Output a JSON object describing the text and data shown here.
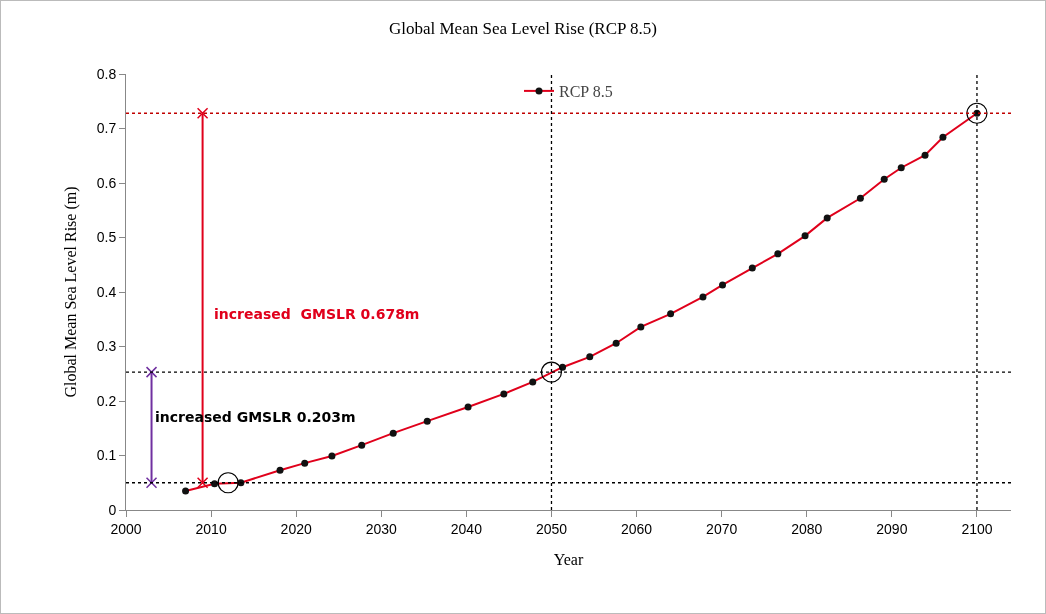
{
  "chart_data": {
    "type": "line",
    "title": "Global Mean Sea Level Rise (RCP 8.5)",
    "xlabel": "Year",
    "ylabel": "Global Mean Sea Level Rise (m)",
    "series": [
      {
        "name": "RCP 8.5",
        "color": "#e0001b",
        "marker": "circle",
        "x": [
          2007.0,
          2010.4,
          2013.5,
          2018.1,
          2021.0,
          2024.2,
          2027.7,
          2031.4,
          2035.4,
          2040.2,
          2044.4,
          2047.8,
          2051.3,
          2054.5,
          2057.6,
          2060.5,
          2064.0,
          2067.8,
          2070.1,
          2073.6,
          2076.6,
          2079.8,
          2082.4,
          2086.3,
          2089.1,
          2091.1,
          2093.9,
          2096.0,
          2100.0
        ],
        "values": [
          0.035,
          0.048,
          0.05,
          0.073,
          0.086,
          0.099,
          0.119,
          0.141,
          0.163,
          0.189,
          0.213,
          0.235,
          0.262,
          0.281,
          0.306,
          0.336,
          0.36,
          0.391,
          0.413,
          0.444,
          0.47,
          0.503,
          0.536,
          0.572,
          0.607,
          0.628,
          0.651,
          0.684,
          0.728
        ]
      },
      {
        "type": "scatter",
        "color": "#000000",
        "marker": "circle",
        "x": [
          2012,
          2050,
          2100
        ],
        "values": [
          0.05,
          0.253,
          0.728
        ]
      },
      {
        "color": "#7030a0",
        "marker": "cross",
        "x": [
          2003,
          2003
        ],
        "values": [
          0.05,
          0.253
        ]
      },
      {
        "color": "#e0001b",
        "marker": "cross",
        "x": [
          2009,
          2009
        ],
        "values": [
          0.05,
          0.728
        ]
      }
    ],
    "ref_lines": [
      {
        "axis": "y",
        "value": 0.05,
        "color": "#000000",
        "line_style": "dotted"
      },
      {
        "axis": "y",
        "value": 0.253,
        "color": "#000000",
        "line_style": "dotted"
      },
      {
        "axis": "y",
        "value": 0.728,
        "color": "#c00000",
        "line_style": "dotted"
      },
      {
        "axis": "x",
        "value": 2050,
        "color": "#000000",
        "line_style": "dotted"
      },
      {
        "axis": "x",
        "value": 2100,
        "color": "#000000",
        "line_style": "dotted"
      }
    ],
    "annotations": [
      "increased GMSLR 0.203m",
      "increased  GMSLR 0.678m"
    ],
    "xlim": [
      2000,
      2104
    ],
    "xticks": [
      2000,
      2010,
      2020,
      2030,
      2040,
      2050,
      2060,
      2070,
      2080,
      2090,
      2100
    ],
    "ylim": [
      0,
      0.8
    ],
    "yticks": [
      0,
      0.1,
      0.2,
      0.3,
      0.4,
      0.5,
      0.6,
      0.7,
      0.8
    ],
    "grid": false,
    "legend": "top",
    "line_style": "solid"
  }
}
